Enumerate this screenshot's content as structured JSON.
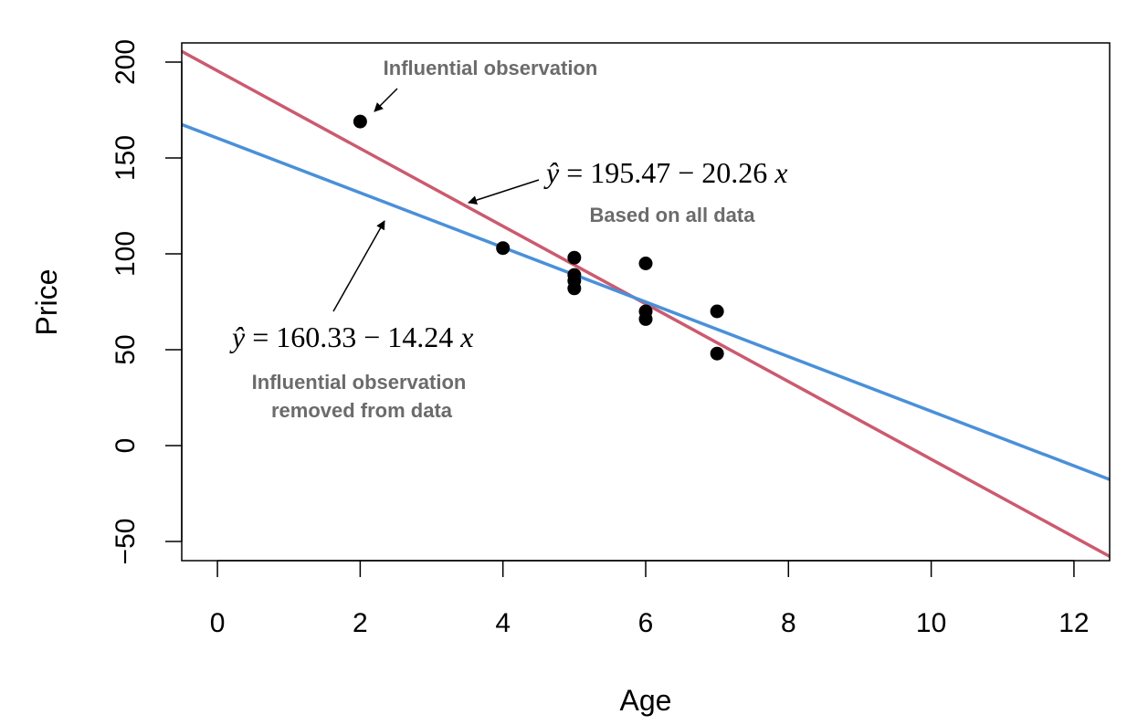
{
  "chart_data": {
    "type": "scatter",
    "xlabel": "Age",
    "ylabel": "Price",
    "xlim": [
      -0.5,
      12.5
    ],
    "ylim": [
      -60,
      210
    ],
    "xticks": [
      0,
      2,
      4,
      6,
      8,
      10,
      12
    ],
    "yticks": [
      -50,
      0,
      50,
      100,
      150,
      200
    ],
    "grid": false,
    "points": [
      {
        "x": 2,
        "y": 169
      },
      {
        "x": 4,
        "y": 103
      },
      {
        "x": 5,
        "y": 98
      },
      {
        "x": 5,
        "y": 89
      },
      {
        "x": 5,
        "y": 86
      },
      {
        "x": 5,
        "y": 82
      },
      {
        "x": 6,
        "y": 95
      },
      {
        "x": 6,
        "y": 70
      },
      {
        "x": 6,
        "y": 66
      },
      {
        "x": 7,
        "y": 70
      },
      {
        "x": 7,
        "y": 48
      }
    ],
    "lines": [
      {
        "intercept": 195.47,
        "slope": -20.26,
        "color": "#cc5a6e"
      },
      {
        "intercept": 160.33,
        "slope": -14.24,
        "color": "#4a90d9"
      }
    ],
    "annotations": {
      "influential": "Influential observation",
      "eq_all_yhat": "ŷ",
      "eq_all_rest": " = 195.47 − 20.26 ",
      "eq_all_x": "x",
      "based_on_all": "Based on all data",
      "eq_removed_yhat": "ŷ",
      "eq_removed_rest": " = 160.33 − 14.24 ",
      "eq_removed_x": "x",
      "removed_line1": "Influential observation",
      "removed_line2": "removed from data"
    }
  }
}
